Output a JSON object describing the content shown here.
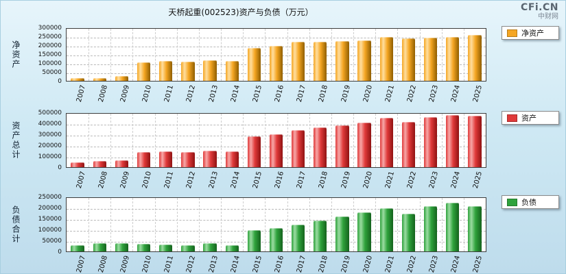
{
  "title": "天桥起重(002523)资产与负债（万元）",
  "brand": {
    "logo": "CFi.CN",
    "name": "中财网"
  },
  "chart_data": [
    {
      "type": "bar",
      "title": "净资产",
      "ylabel": "净资产",
      "xlabel": "",
      "legend": "净资产",
      "legend_position": "right",
      "grid": true,
      "ylim": [
        0,
        300000
      ],
      "ytick": 50000,
      "colors": {
        "main": "#F5A623",
        "light": "#FFDE9E",
        "dark": "#8F5E00"
      },
      "categories": [
        "2007",
        "2008",
        "2009",
        "2010",
        "2011",
        "2012",
        "2013",
        "2014",
        "2015",
        "2016",
        "2017",
        "2018",
        "2019",
        "2020",
        "2021",
        "2022",
        "2023",
        "2024",
        "2025"
      ],
      "values": [
        15000,
        17000,
        25000,
        105000,
        110000,
        107000,
        115000,
        112000,
        185000,
        196000,
        218000,
        221000,
        222000,
        228000,
        248000,
        240000,
        243000,
        248000,
        258000
      ]
    },
    {
      "type": "bar",
      "title": "资产总计",
      "ylabel": "资产总计",
      "xlabel": "",
      "legend": "资产",
      "legend_position": "right",
      "grid": true,
      "ylim": [
        0,
        500000
      ],
      "ytick": 100000,
      "colors": {
        "main": "#E03A3A",
        "light": "#F7A8A8",
        "dark": "#8F1212"
      },
      "categories": [
        "2007",
        "2008",
        "2009",
        "2010",
        "2011",
        "2012",
        "2013",
        "2014",
        "2015",
        "2016",
        "2017",
        "2018",
        "2019",
        "2020",
        "2021",
        "2022",
        "2023",
        "2024",
        "2025"
      ],
      "values": [
        45000,
        55000,
        62000,
        135000,
        142000,
        138000,
        150000,
        142000,
        280000,
        302000,
        340000,
        365000,
        382000,
        408000,
        450000,
        415000,
        455000,
        472000,
        468000
      ]
    },
    {
      "type": "bar",
      "title": "负债合计",
      "ylabel": "负债合计",
      "xlabel": "",
      "legend": "负债",
      "legend_position": "right",
      "grid": true,
      "ylim": [
        0,
        250000
      ],
      "ytick": 50000,
      "colors": {
        "main": "#2FA23C",
        "light": "#9BDCA2",
        "dark": "#14621D"
      },
      "categories": [
        "2007",
        "2008",
        "2009",
        "2010",
        "2011",
        "2012",
        "2013",
        "2014",
        "2015",
        "2016",
        "2017",
        "2018",
        "2019",
        "2020",
        "2021",
        "2022",
        "2023",
        "2024",
        "2025"
      ],
      "values": [
        28000,
        38000,
        36000,
        33000,
        30000,
        29000,
        36000,
        29000,
        96000,
        106000,
        122000,
        142000,
        158000,
        178000,
        196000,
        172000,
        207000,
        222000,
        207000
      ]
    }
  ]
}
